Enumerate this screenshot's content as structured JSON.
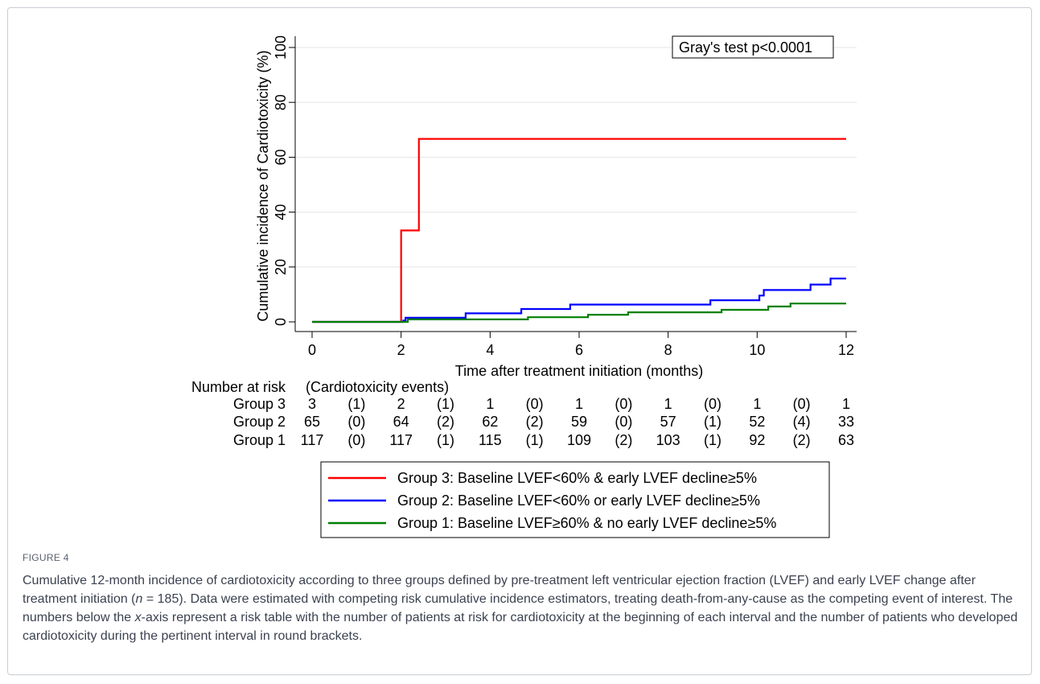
{
  "chart_data": {
    "type": "line",
    "title": "",
    "xlabel": "Time after treatment initiation (months)",
    "ylabel": "Cumulative incidence of Cardiotoxicity (%)",
    "xlim": [
      0,
      12
    ],
    "ylim": [
      0,
      100
    ],
    "xticks": [
      "0",
      "2",
      "4",
      "6",
      "8",
      "10",
      "12"
    ],
    "yticks": [
      "0",
      "20",
      "40",
      "60",
      "80",
      "100"
    ],
    "grid": "horizontal",
    "annotation": "Gray's test p<0.0001",
    "step": true,
    "series": [
      {
        "name": "Group 3: Baseline LVEF<60% & early LVEF decline≥5%",
        "color": "#ff0000",
        "points": [
          [
            0,
            0
          ],
          [
            2.0,
            0
          ],
          [
            2.0,
            33.3
          ],
          [
            2.4,
            33.3
          ],
          [
            2.4,
            66.7
          ],
          [
            12,
            66.7
          ]
        ]
      },
      {
        "name": "Group 2: Baseline LVEF<60% or early LVEF decline≥5%",
        "color": "#0000ff",
        "points": [
          [
            0,
            0
          ],
          [
            2.05,
            0
          ],
          [
            2.05,
            0.5
          ],
          [
            2.1,
            0.5
          ],
          [
            2.1,
            1.5
          ],
          [
            3.45,
            1.5
          ],
          [
            3.45,
            3.1
          ],
          [
            4.7,
            3.1
          ],
          [
            4.7,
            4.7
          ],
          [
            5.8,
            4.7
          ],
          [
            5.8,
            6.3
          ],
          [
            8.95,
            6.3
          ],
          [
            8.95,
            7.9
          ],
          [
            10.05,
            7.9
          ],
          [
            10.05,
            9.6
          ],
          [
            10.15,
            9.6
          ],
          [
            10.15,
            11.6
          ],
          [
            11.2,
            11.6
          ],
          [
            11.2,
            13.6
          ],
          [
            11.65,
            13.6
          ],
          [
            11.65,
            15.8
          ],
          [
            12,
            15.8
          ]
        ]
      },
      {
        "name": "Group 1: Baseline LVEF≥60% & no early LVEF decline≥5%",
        "color": "#008000",
        "points": [
          [
            0,
            0
          ],
          [
            2.15,
            0
          ],
          [
            2.15,
            0.9
          ],
          [
            4.85,
            0.9
          ],
          [
            4.85,
            1.7
          ],
          [
            6.2,
            1.7
          ],
          [
            6.2,
            2.6
          ],
          [
            7.1,
            2.6
          ],
          [
            7.1,
            3.5
          ],
          [
            9.2,
            3.5
          ],
          [
            9.2,
            4.4
          ],
          [
            10.25,
            4.4
          ],
          [
            10.25,
            5.6
          ],
          [
            10.75,
            5.6
          ],
          [
            10.75,
            6.7
          ],
          [
            12,
            6.7
          ]
        ]
      }
    ],
    "risk_table": {
      "header": "Number at risk",
      "subheader": "(Cardiotoxicity events)",
      "rows": [
        {
          "label": "Group 3",
          "values": [
            "3",
            "(1)",
            "2",
            "(1)",
            "1",
            "(0)",
            "1",
            "(0)",
            "1",
            "(0)",
            "1",
            "(0)",
            "1"
          ]
        },
        {
          "label": "Group 2",
          "values": [
            "65",
            "(0)",
            "64",
            "(2)",
            "62",
            "(2)",
            "59",
            "(0)",
            "57",
            "(1)",
            "52",
            "(4)",
            "33"
          ]
        },
        {
          "label": "Group 1",
          "values": [
            "117",
            "(0)",
            "117",
            "(1)",
            "115",
            "(1)",
            "109",
            "(2)",
            "103",
            "(1)",
            "92",
            "(2)",
            "63"
          ]
        }
      ]
    }
  },
  "figure": {
    "label": "FIGURE 4",
    "caption_1": "Cumulative 12-month incidence of cardiotoxicity according to three groups defined by pre-treatment left ventricular ejection fraction (LVEF) and early LVEF change after treatment initiation (",
    "caption_n": "n",
    "caption_2": " = 185). Data were estimated with competing risk cumulative incidence estimators, treating death-from-any-cause as the competing event of interest. The numbers below the ",
    "caption_x": "x",
    "caption_3": "-axis represent a risk table with the number of patients at risk for cardiotoxicity at the beginning of each interval and the number of patients who developed cardiotoxicity during the pertinent interval in round brackets."
  }
}
